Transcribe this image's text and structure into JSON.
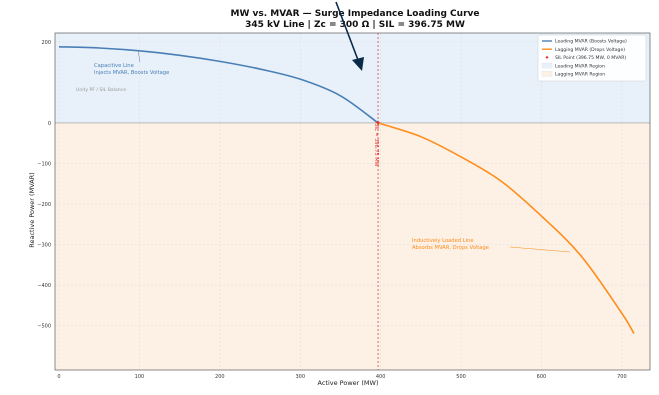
{
  "chart_data": {
    "type": "line",
    "title": "MW vs. MVAR — Surge Impedance Loading Curve",
    "subtitle": "345 kV Line  |  Zc = 300 Ω  |  SIL = 396.75 MW",
    "xlabel": "Active Power (MW)",
    "ylabel": "Reactive Power (MVAR)",
    "xlim": [
      -5,
      735
    ],
    "ylim": [
      -610,
      222
    ],
    "x_ticks": [
      "0",
      "100",
      "200",
      "300",
      "400",
      "500",
      "600",
      "700"
    ],
    "y_ticks": [
      "200",
      "0",
      "−100",
      "−200",
      "−300",
      "−400",
      "−500"
    ],
    "grid": true,
    "legend_position": "top-right",
    "sil_mw": 396.75,
    "series": [
      {
        "name": "Leading MVAR (Boosts Voltage)",
        "color": "#4a7fb5",
        "x": [
          0,
          50,
          100,
          150,
          200,
          250,
          300,
          350,
          396.75
        ],
        "y": [
          188,
          185,
          178,
          167,
          152,
          133,
          108,
          67,
          0
        ]
      },
      {
        "name": "Lagging MVAR (Drops Voltage)",
        "color": "#ff8c1a",
        "x": [
          396.75,
          450,
          500,
          550,
          600,
          650,
          700,
          715
        ],
        "y": [
          0,
          -34,
          -84,
          -144,
          -230,
          -330,
          -470,
          -520
        ]
      }
    ],
    "sil_point": {
      "name": "SIL Point  (396.75 MW, 0 MVAR)",
      "x": 396.75,
      "y": 0,
      "color": "#e03030"
    },
    "regions": [
      {
        "name": "Leading MVAR Region",
        "color": "#e8f1fa"
      },
      {
        "name": "Lagging MVAR Region",
        "color": "#fdf0e4"
      }
    ],
    "annotations": {
      "capacitive_line1": "Capacitive Line",
      "capacitive_line2": "Injects MVAR, Boosts Voltage",
      "inductive_line1": "Inductively Loaded Line",
      "inductive_line2": "Absorbs MVAR, Drops Voltage",
      "sil_vertical": "SIL = 396.75 MW",
      "unity_pf": "Unity PF / SIL Balance"
    }
  }
}
